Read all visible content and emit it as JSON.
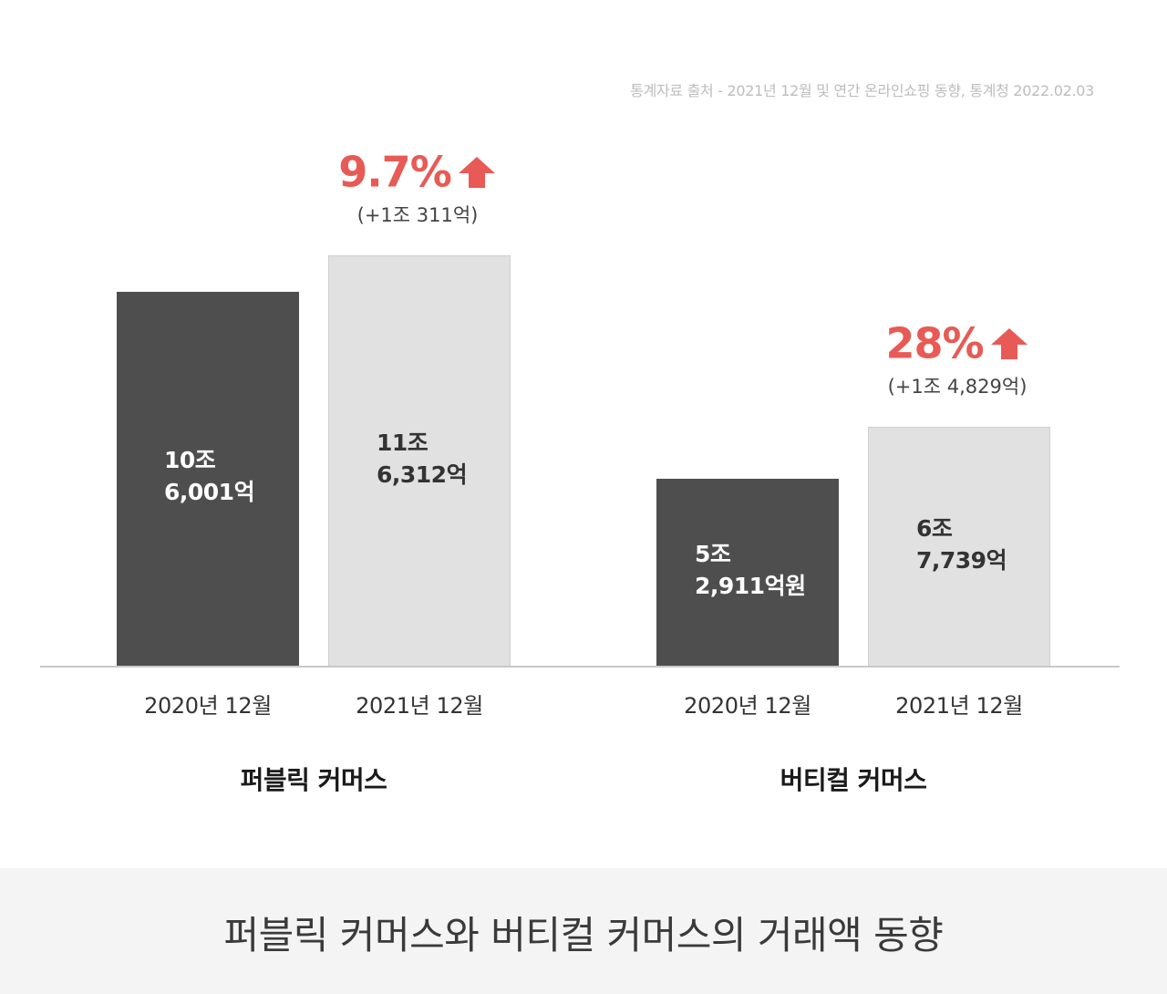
{
  "source": "통계자료 출처 - 2021년 12월 및 연간 온라인쇼핑 동향, 통계청 2022.02.03",
  "footer_title": "퍼블릭 커머스와 버티컬 커머스의 거래액 동향",
  "colors": {
    "bar_2020": "#4e4e4e",
    "bar_2021": "#e1e1e1",
    "accent": "#e85a55"
  },
  "chart_data": {
    "type": "bar",
    "title": "",
    "xlabel": "",
    "ylabel": "",
    "ylim": [
      0,
      130000
    ],
    "unit": "억",
    "groups": [
      {
        "name": "퍼블릭 커머스",
        "categories": [
          "2020년 12월",
          "2021년 12월"
        ],
        "values": [
          106001,
          116312
        ],
        "labels": [
          "10조\n6,001억",
          "11조\n6,312억"
        ],
        "growth": "9.7%",
        "delta": "(+1조 311억)"
      },
      {
        "name": "버티컬 커머스",
        "categories": [
          "2020년 12월",
          "2021년 12월"
        ],
        "values": [
          52911,
          67739
        ],
        "labels": [
          "5조\n2,911억원",
          "6조\n7,739억"
        ],
        "growth": "28%",
        "delta": "(+1조 4,829억)"
      }
    ]
  }
}
